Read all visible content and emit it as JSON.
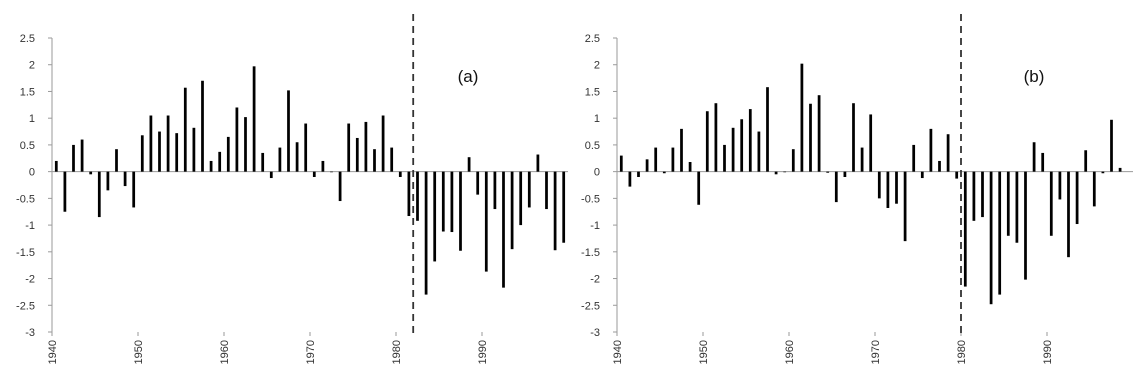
{
  "chart_data": [
    {
      "type": "bar",
      "panel_label": "(a)",
      "x_start": 1940,
      "xlim": [
        1940,
        2000
      ],
      "ylim": [
        -3,
        2.5
      ],
      "y_ticks": [
        "2.5",
        "2",
        "1.5",
        "1",
        "0.5",
        "0",
        "-0.5",
        "-1",
        "-1.5",
        "-2",
        "-2.5",
        "-3"
      ],
      "x_ticks": [
        "1940",
        "1950",
        "1960",
        "1970",
        "1980",
        "1990"
      ],
      "vertical_dashed_line_at": 1982,
      "grid": false,
      "values": [
        0.2,
        -0.75,
        0.5,
        0.6,
        -0.05,
        -0.85,
        -0.35,
        0.42,
        -0.27,
        -0.67,
        0.68,
        1.05,
        0.75,
        1.05,
        0.72,
        1.57,
        0.82,
        1.7,
        0.2,
        0.37,
        0.65,
        1.2,
        1.02,
        1.97,
        0.35,
        -0.12,
        0.45,
        1.52,
        0.55,
        0.9,
        -0.1,
        0.2,
        0.0,
        -0.55,
        0.9,
        0.63,
        0.93,
        0.42,
        1.05,
        0.45,
        -0.1,
        -0.83,
        -0.92,
        -2.3,
        -1.68,
        -1.12,
        -1.13,
        -1.48,
        0.27,
        -0.43,
        -1.87,
        -0.7,
        -2.17,
        -1.45,
        -1.0,
        -0.67,
        0.32,
        -0.7,
        -1.47,
        -1.33
      ]
    },
    {
      "type": "bar",
      "panel_label": "(b)",
      "x_start": 1940,
      "xlim": [
        1940,
        2000
      ],
      "ylim": [
        -3,
        2.5
      ],
      "y_ticks": [
        "2.5",
        "2",
        "1.5",
        "1",
        "0.5",
        "0",
        "-0.5",
        "-1",
        "-1.5",
        "-2",
        "-2.5",
        "-3"
      ],
      "x_ticks": [
        "1940",
        "1950",
        "1960",
        "1970",
        "1980",
        "1990"
      ],
      "vertical_dashed_line_at": 1980,
      "grid": false,
      "values": [
        0.3,
        -0.28,
        -0.1,
        0.23,
        0.45,
        -0.03,
        0.45,
        0.8,
        0.18,
        -0.62,
        1.13,
        1.28,
        0.5,
        0.82,
        0.98,
        1.17,
        0.75,
        1.58,
        -0.05,
        0.0,
        0.42,
        2.02,
        1.27,
        1.43,
        -0.02,
        -0.57,
        -0.1,
        1.28,
        0.45,
        1.07,
        -0.5,
        -0.68,
        -0.6,
        -1.3,
        0.5,
        -0.12,
        0.8,
        0.2,
        0.7,
        -0.13,
        -2.15,
        -0.92,
        -0.85,
        -2.48,
        -2.3,
        -1.2,
        -1.33,
        -2.02,
        0.55,
        0.35,
        -1.2,
        -0.52,
        -1.6,
        -0.98,
        0.4,
        -0.65,
        -0.03,
        0.97,
        0.07
      ]
    }
  ]
}
